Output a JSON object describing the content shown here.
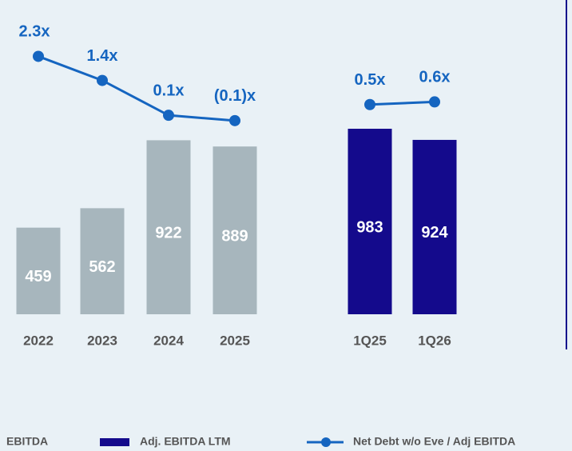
{
  "chart_data": {
    "type": "bar",
    "categories": [
      "2022",
      "2023",
      "2024",
      "2025",
      "1Q25",
      "1Q26"
    ],
    "ylim": [
      0,
      1000
    ],
    "y2lim": [
      -1,
      3
    ],
    "series": [
      {
        "name": "EBITDA",
        "color": "#a7b6bd",
        "values": [
          459,
          562,
          922,
          889,
          null,
          null
        ]
      },
      {
        "name": "Adj. EBITDA LTM",
        "color": "#140a8c",
        "values": [
          null,
          null,
          null,
          null,
          983,
          924
        ]
      },
      {
        "name": "Net Debt w/o Eve / Adj EBITDA",
        "type": "line",
        "axis": "y2",
        "color": "#1565c0",
        "values": [
          2.3,
          1.4,
          0.1,
          -0.1,
          0.5,
          0.6
        ],
        "value_labels": [
          "2.3x",
          "1.4x",
          "0.1x",
          "(0.1)x",
          "0.5x",
          "0.6x"
        ]
      }
    ]
  }
}
